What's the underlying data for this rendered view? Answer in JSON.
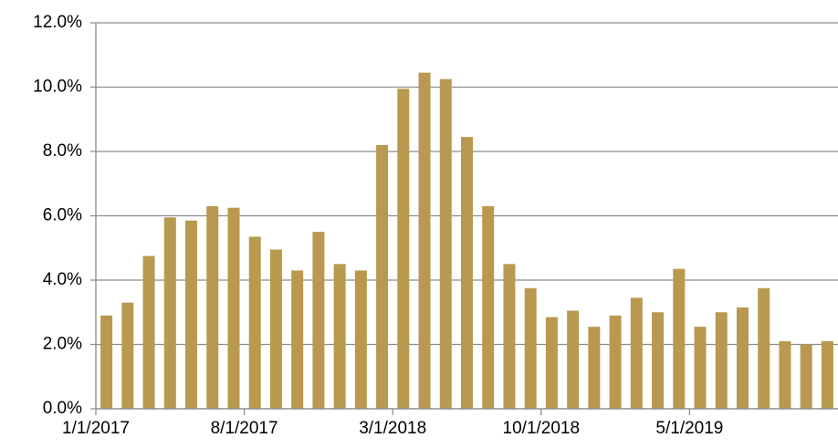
{
  "chart_data": {
    "type": "bar",
    "categories": [
      "1/1/2017",
      null,
      null,
      null,
      null,
      null,
      null,
      "8/1/2017",
      null,
      null,
      null,
      null,
      null,
      null,
      "3/1/2018",
      null,
      null,
      null,
      null,
      null,
      null,
      "10/1/2018",
      null,
      null,
      null,
      null,
      null,
      null,
      "5/1/2019",
      null,
      null,
      null,
      null,
      null,
      null
    ],
    "values": [
      2.9,
      3.3,
      4.75,
      5.95,
      5.85,
      6.3,
      6.25,
      5.35,
      4.95,
      4.3,
      5.5,
      4.5,
      4.3,
      8.2,
      9.95,
      10.45,
      10.25,
      8.45,
      6.3,
      4.5,
      3.75,
      2.85,
      3.05,
      2.55,
      2.9,
      3.45,
      3.0,
      4.35,
      2.55,
      3.0,
      3.15,
      3.75,
      2.1,
      2.0,
      2.1
    ],
    "color": "#b8994f",
    "ylim": [
      0,
      12
    ],
    "yticks": [
      {
        "value": 0,
        "label": "0.0%"
      },
      {
        "value": 2,
        "label": "2.0%"
      },
      {
        "value": 4,
        "label": "4.0%"
      },
      {
        "value": 6,
        "label": "6.0%"
      },
      {
        "value": 8,
        "label": "8.0%"
      },
      {
        "value": 10,
        "label": "10.0%"
      },
      {
        "value": 12,
        "label": "12.0%"
      }
    ],
    "grid": true
  }
}
